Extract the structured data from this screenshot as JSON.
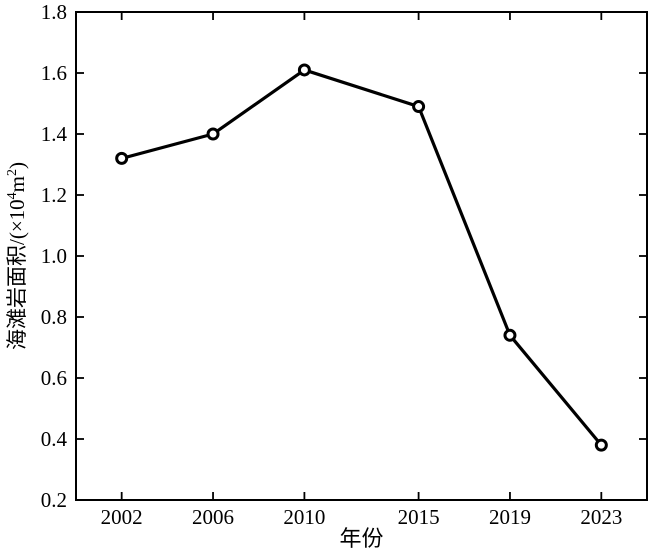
{
  "chart_data": {
    "type": "line",
    "title": "",
    "xlabel": "年份",
    "ylabel": "海滩岩面积/(×10⁴m²)",
    "ylabel_parts": [
      {
        "t": "海滩岩面积/(×10",
        "sup": false
      },
      {
        "t": "4",
        "sup": true
      },
      {
        "t": "m",
        "sup": false
      },
      {
        "t": "2",
        "sup": true
      },
      {
        "t": ")",
        "sup": false
      }
    ],
    "x": [
      2002,
      2006,
      2010,
      2015,
      2019,
      2023
    ],
    "values": [
      1.32,
      1.4,
      1.61,
      1.49,
      0.74,
      0.38
    ],
    "series_name": "beach-rock-area",
    "xlim": [
      2000,
      2025
    ],
    "ylim": [
      0.2,
      1.8
    ],
    "xticks": [
      2002,
      2006,
      2010,
      2015,
      2019,
      2023
    ],
    "xtick_labels": [
      "2002",
      "2006",
      "2010",
      "2015",
      "2019",
      "2023"
    ],
    "yticks": [
      0.2,
      0.4,
      0.6,
      0.8,
      1.0,
      1.2,
      1.4,
      1.6,
      1.8
    ],
    "ytick_labels": [
      "0.2",
      "0.4",
      "0.6",
      "0.8",
      "1.0",
      "1.2",
      "1.4",
      "1.6",
      "1.8"
    ],
    "grid": false,
    "legend": null,
    "tick_direction": "in",
    "box": true,
    "line_color": "#000000",
    "marker": "open-circle",
    "marker_fill": "#ffffff",
    "axis_color": "#000000",
    "background": "#ffffff"
  }
}
